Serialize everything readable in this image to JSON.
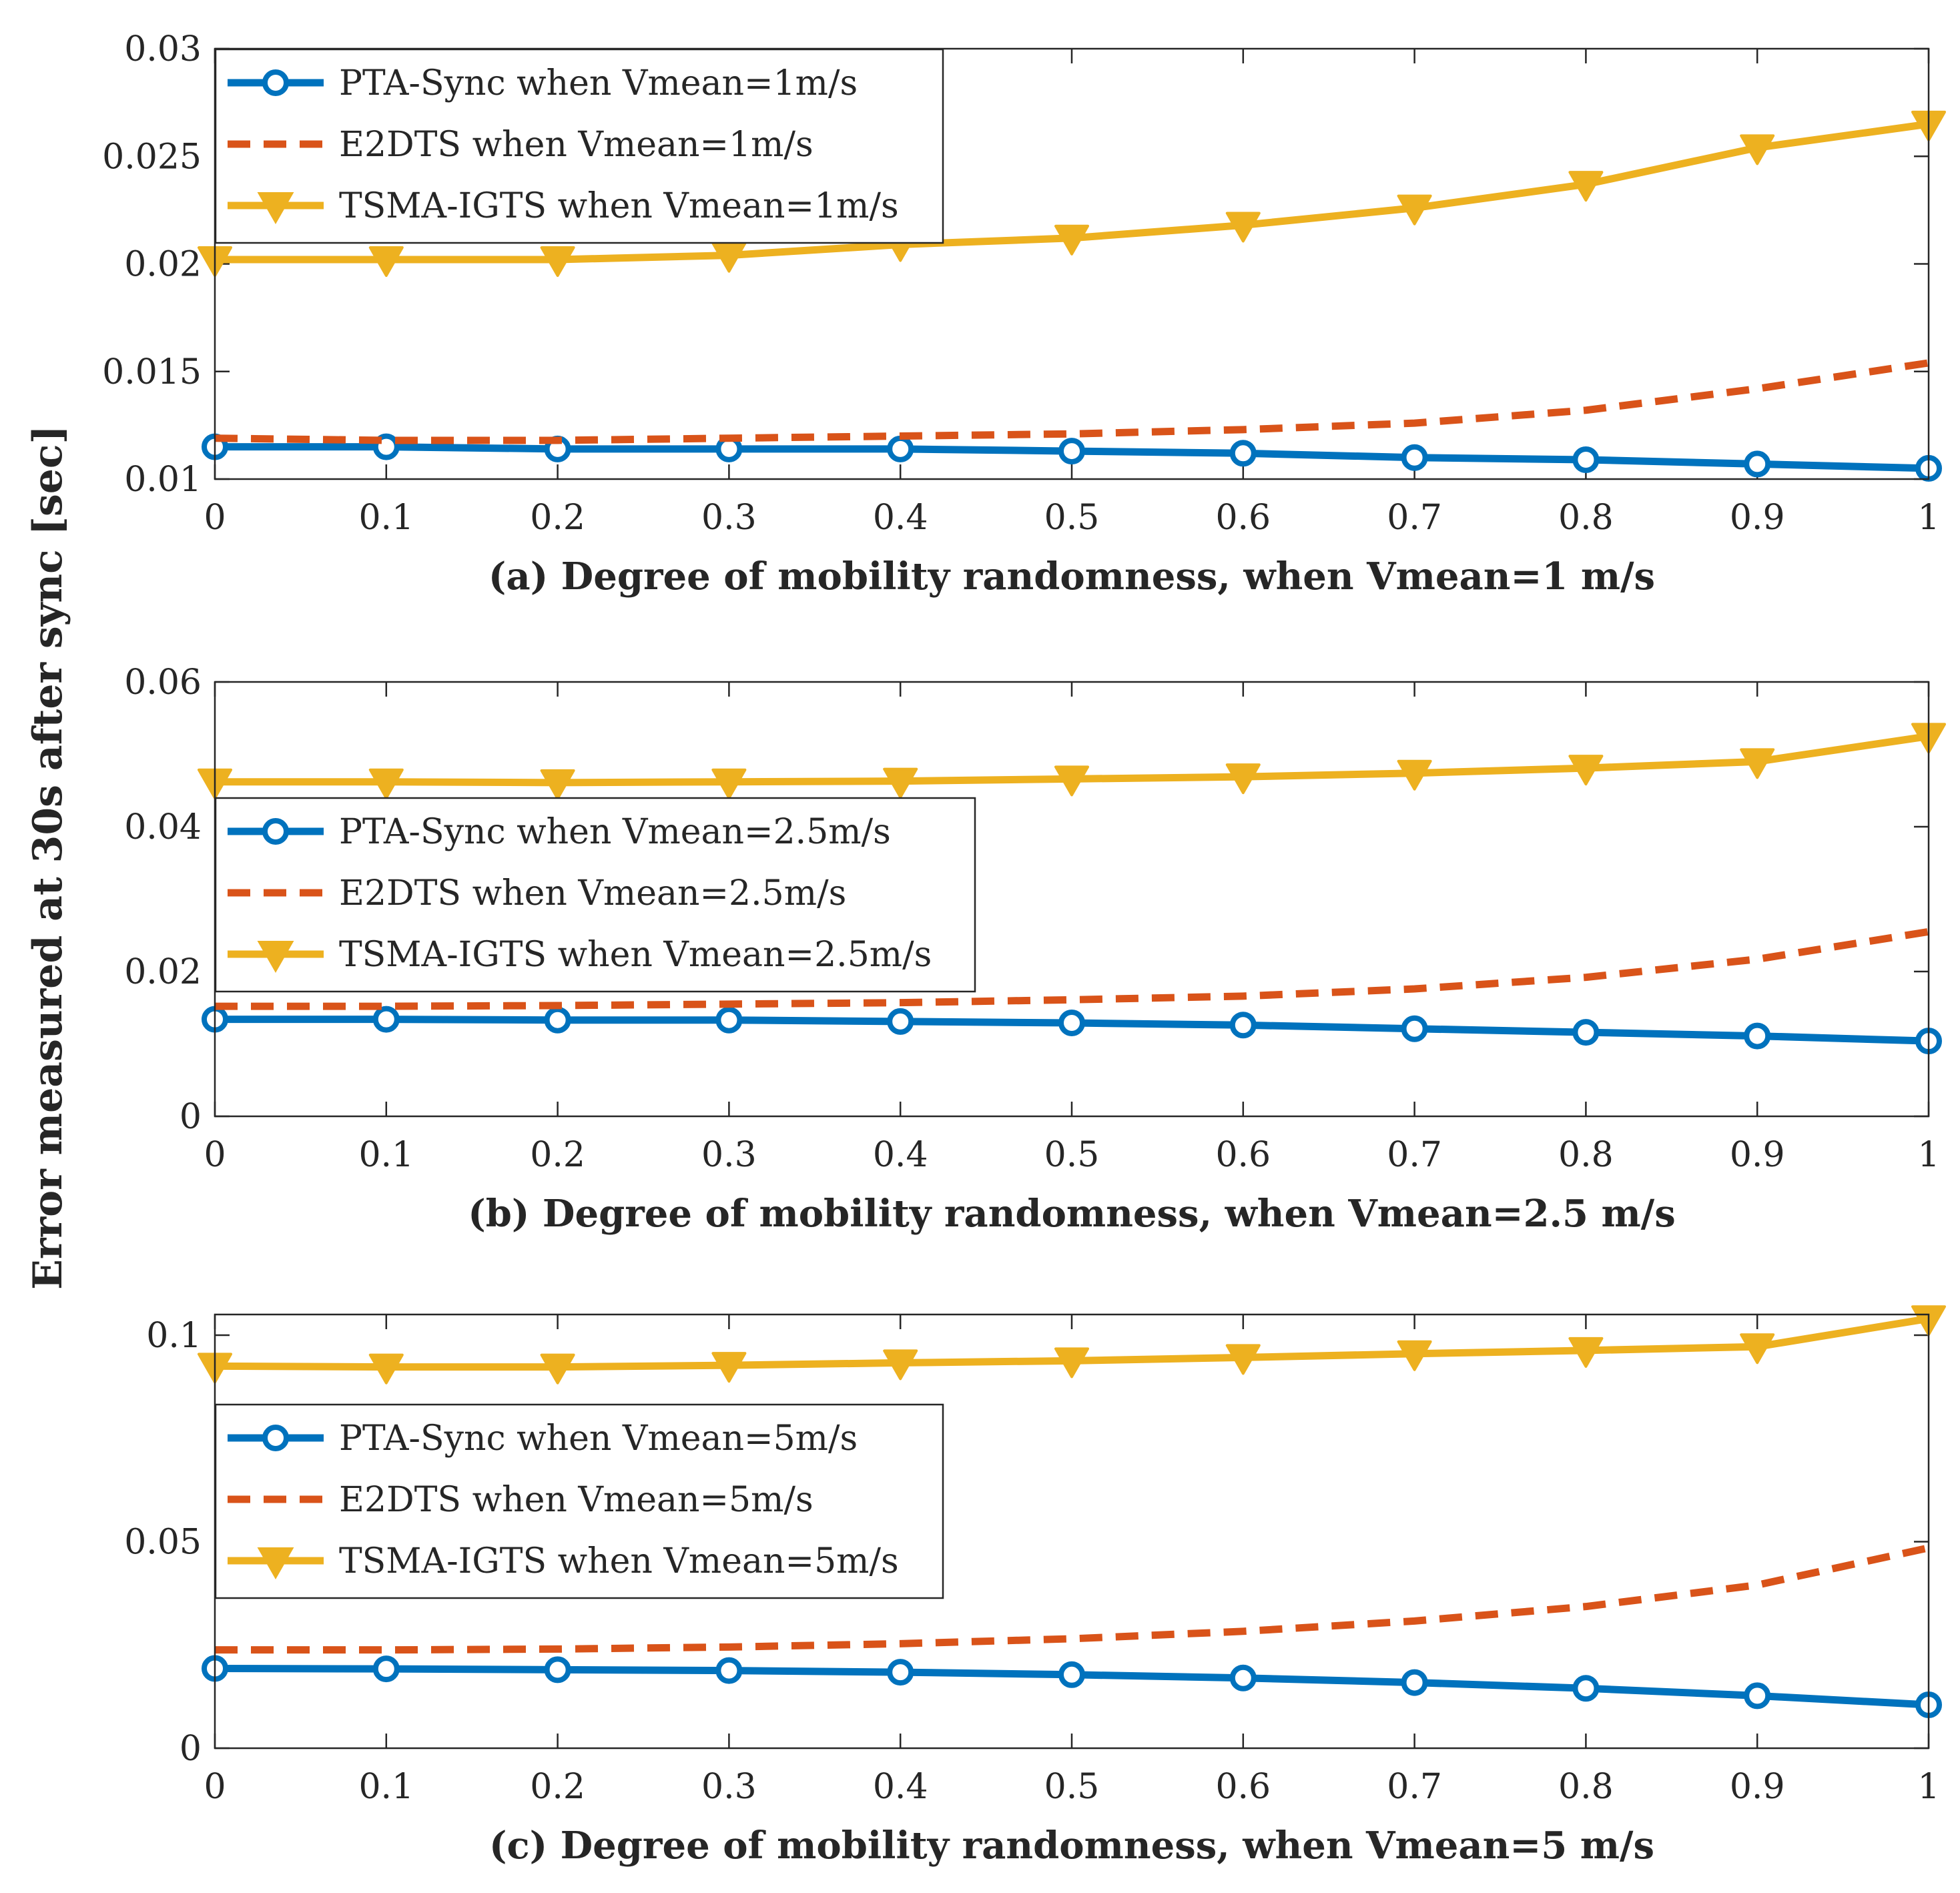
{
  "figure": {
    "ylabel": "Error measured at 30s after sync [sec]"
  },
  "chart_data": [
    {
      "type": "line",
      "title": "",
      "xlabel": "(a) Degree of mobility randomness, when Vmean=1 m/s",
      "ylabel": "Error measured at 30s after sync [sec]",
      "x": [
        0,
        0.1,
        0.2,
        0.3,
        0.4,
        0.5,
        0.6,
        0.7,
        0.8,
        0.9,
        1
      ],
      "xticks": [
        "0",
        "0.1",
        "0.2",
        "0.3",
        "0.4",
        "0.5",
        "0.6",
        "0.7",
        "0.8",
        "0.9",
        "1"
      ],
      "xlim": [
        0,
        1
      ],
      "ylim": [
        0.01,
        0.03
      ],
      "yticks": [
        0.01,
        0.015,
        0.02,
        0.025,
        0.03
      ],
      "ytick_labels": [
        "0.01",
        "0.015",
        "0.02",
        "0.025",
        "0.03"
      ],
      "legend_position": "top-left",
      "series": [
        {
          "name": "PTA-Sync when Vmean=1m/s",
          "color": "#0072BD",
          "style": "solid",
          "marker": "circle",
          "values": [
            0.0115,
            0.0115,
            0.0114,
            0.0114,
            0.0114,
            0.0113,
            0.0112,
            0.011,
            0.0109,
            0.0107,
            0.0105
          ]
        },
        {
          "name": "E2DTS when Vmean=1m/s",
          "color": "#D95319",
          "style": "dashed",
          "marker": "none",
          "values": [
            0.0119,
            0.0118,
            0.0118,
            0.0119,
            0.012,
            0.0121,
            0.0123,
            0.0126,
            0.0132,
            0.0142,
            0.0154
          ]
        },
        {
          "name": "TSMA-IGTS when Vmean=1m/s",
          "color": "#EDB120",
          "style": "solid",
          "marker": "triangle-down",
          "values": [
            0.0202,
            0.0202,
            0.0202,
            0.0204,
            0.0209,
            0.0212,
            0.0218,
            0.0226,
            0.0237,
            0.0254,
            0.0265
          ]
        }
      ]
    },
    {
      "type": "line",
      "title": "",
      "xlabel": "(b) Degree of mobility randomness, when Vmean=2.5 m/s",
      "ylabel": "Error measured at 30s after sync [sec]",
      "x": [
        0,
        0.1,
        0.2,
        0.3,
        0.4,
        0.5,
        0.6,
        0.7,
        0.8,
        0.9,
        1
      ],
      "xticks": [
        "0",
        "0.1",
        "0.2",
        "0.3",
        "0.4",
        "0.5",
        "0.6",
        "0.7",
        "0.8",
        "0.9",
        "1"
      ],
      "xlim": [
        0,
        1
      ],
      "ylim": [
        0,
        0.06
      ],
      "yticks": [
        0,
        0.02,
        0.04,
        0.06
      ],
      "ytick_labels": [
        "0",
        "0.02",
        "0.04",
        "0.06"
      ],
      "legend_position": "center-left",
      "series": [
        {
          "name": "PTA-Sync when Vmean=2.5m/s",
          "color": "#0072BD",
          "style": "solid",
          "marker": "circle",
          "values": [
            0.0134,
            0.0134,
            0.0133,
            0.0133,
            0.0131,
            0.0129,
            0.0126,
            0.0121,
            0.0116,
            0.0111,
            0.0104
          ]
        },
        {
          "name": "E2DTS when Vmean=2.5m/s",
          "color": "#D95319",
          "style": "dashed",
          "marker": "none",
          "values": [
            0.0152,
            0.0152,
            0.0153,
            0.0155,
            0.0157,
            0.0161,
            0.0166,
            0.0176,
            0.0192,
            0.0217,
            0.0255
          ]
        },
        {
          "name": "TSMA-IGTS when Vmean=2.5m/s",
          "color": "#EDB120",
          "style": "solid",
          "marker": "triangle-down",
          "values": [
            0.0462,
            0.0462,
            0.0461,
            0.0462,
            0.0463,
            0.0466,
            0.0469,
            0.0474,
            0.0481,
            0.049,
            0.0525
          ]
        }
      ]
    },
    {
      "type": "line",
      "title": "",
      "xlabel": "(c) Degree of mobility randomness, when Vmean=5 m/s",
      "ylabel": "Error measured at 30s after sync [sec]",
      "x": [
        0,
        0.1,
        0.2,
        0.3,
        0.4,
        0.5,
        0.6,
        0.7,
        0.8,
        0.9,
        1
      ],
      "xticks": [
        "0",
        "0.1",
        "0.2",
        "0.3",
        "0.4",
        "0.5",
        "0.6",
        "0.7",
        "0.8",
        "0.9",
        "1"
      ],
      "xlim": [
        0,
        1
      ],
      "ylim": [
        0,
        0.105
      ],
      "yticks": [
        0,
        0.05,
        0.1
      ],
      "ytick_labels": [
        "0",
        "0.05",
        "0.1"
      ],
      "legend_position": "center-left",
      "series": [
        {
          "name": "PTA-Sync when Vmean=5m/s",
          "color": "#0072BD",
          "style": "solid",
          "marker": "circle",
          "values": [
            0.0193,
            0.0192,
            0.019,
            0.0188,
            0.0184,
            0.0178,
            0.017,
            0.0159,
            0.0145,
            0.0127,
            0.0105
          ]
        },
        {
          "name": "E2DTS when Vmean=5m/s",
          "color": "#D95319",
          "style": "dashed",
          "marker": "none",
          "values": [
            0.0238,
            0.0238,
            0.024,
            0.0245,
            0.0253,
            0.0265,
            0.0283,
            0.0308,
            0.0343,
            0.0395,
            0.0485
          ]
        },
        {
          "name": "TSMA-IGTS when Vmean=5m/s",
          "color": "#EDB120",
          "style": "solid",
          "marker": "triangle-down",
          "values": [
            0.0925,
            0.0923,
            0.0923,
            0.0927,
            0.0933,
            0.0938,
            0.0946,
            0.0955,
            0.0963,
            0.0972,
            0.104
          ]
        }
      ]
    }
  ]
}
